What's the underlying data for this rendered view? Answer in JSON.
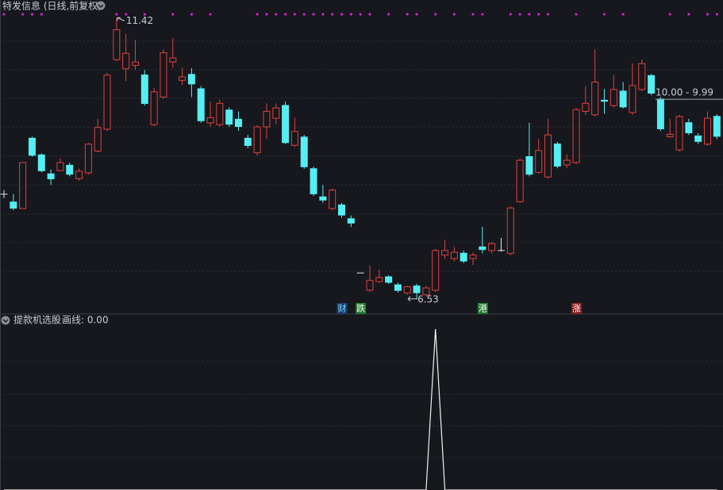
{
  "chart_data": [
    {
      "type": "candlestick",
      "title": "特发信息 (日线,前复权)",
      "open": [
        8.35,
        8.22,
        8.1,
        9.33,
        9.04,
        8.71,
        8.76,
        8.86,
        8.62,
        8.72,
        9.1,
        9.48,
        10.69,
        10.53,
        10.59,
        10.43,
        9.56,
        10.04,
        10.65,
        10.33,
        10.44,
        10.19,
        9.59,
        9.56,
        9.82,
        9.66,
        9.33,
        9.07,
        9.52,
        9.67,
        9.9,
        9.2,
        9.35,
        8.8,
        8.31,
        8.1,
        8.17,
        7.93,
        6.98,
        6.68,
        6.83,
        6.92,
        6.78,
        6.63,
        6.76,
        6.6,
        6.68,
        7.29,
        7.23,
        7.33,
        7.23,
        7.44,
        7.37,
        7.37,
        7.32,
        8.22,
        9.01,
        8.73,
        8.65,
        9.23,
        8.86,
        8.9,
        9.79,
        9.73,
        9.99,
        9.89,
        10.15,
        9.77,
        10.17,
        10.42,
        10.01,
        9.35,
        9.12,
        9.6,
        9.37,
        9.22,
        9.71
      ],
      "high": [
        8.42,
        8.35,
        8.9,
        9.35,
        9.06,
        8.78,
        8.97,
        8.9,
        8.8,
        9.24,
        9.66,
        10.46,
        11.42,
        11.14,
        11.03,
        10.51,
        10.2,
        10.87,
        11.06,
        10.55,
        10.54,
        10.23,
        9.96,
        9.99,
        9.86,
        9.79,
        9.38,
        9.55,
        9.93,
        9.93,
        9.96,
        9.68,
        9.38,
        8.83,
        8.51,
        8.45,
        8.2,
        7.98,
        6.98,
        7.11,
        7.04,
        6.94,
        6.81,
        6.76,
        6.79,
        6.76,
        7.4,
        7.56,
        7.43,
        7.37,
        7.34,
        7.78,
        7.52,
        7.59,
        8.14,
        8.97,
        9.59,
        9.31,
        9.66,
        9.26,
        9.04,
        9.85,
        10.23,
        10.87,
        10.18,
        10.42,
        10.3,
        10.62,
        10.69,
        10.44,
        10.04,
        9.66,
        9.73,
        9.66,
        9.41,
        9.79,
        9.74
      ],
      "low": [
        8.28,
        8.07,
        8.1,
        9.0,
        8.73,
        8.51,
        8.75,
        8.66,
        8.58,
        8.69,
        9.08,
        9.45,
        10.66,
        10.32,
        10.51,
        9.89,
        9.53,
        10.01,
        10.55,
        10.25,
        10.04,
        9.59,
        9.52,
        9.52,
        9.52,
        9.45,
        9.15,
        9.02,
        9.31,
        9.57,
        9.22,
        9.17,
        8.79,
        8.32,
        8.2,
        8.07,
        7.94,
        7.78,
        6.98,
        6.65,
        6.81,
        6.79,
        6.64,
        6.6,
        6.53,
        6.57,
        6.65,
        7.22,
        7.18,
        7.15,
        7.12,
        7.32,
        7.32,
        7.35,
        7.29,
        8.2,
        8.66,
        8.71,
        8.62,
        8.8,
        8.8,
        8.87,
        9.73,
        9.7,
        9.75,
        9.86,
        9.84,
        9.73,
        10.14,
        10.07,
        9.45,
        9.33,
        9.09,
        9.38,
        9.22,
        9.19,
        9.31
      ],
      "close": [
        8.35,
        8.1,
        8.9,
        9.02,
        8.75,
        8.61,
        8.9,
        8.69,
        8.75,
        9.22,
        9.51,
        10.42,
        11.21,
        10.8,
        10.65,
        9.92,
        10.13,
        10.81,
        10.72,
        10.39,
        10.26,
        9.62,
        9.68,
        9.93,
        9.56,
        9.52,
        9.19,
        9.52,
        9.79,
        9.85,
        9.24,
        9.44,
        8.82,
        8.35,
        8.24,
        8.42,
        7.98,
        7.84,
        6.98,
        6.85,
        6.9,
        6.81,
        6.67,
        6.74,
        6.63,
        6.72,
        7.37,
        7.37,
        7.34,
        7.18,
        7.29,
        7.38,
        7.49,
        7.37,
        8.11,
        8.94,
        8.69,
        9.11,
        9.38,
        8.83,
        8.94,
        9.82,
        9.93,
        10.3,
        9.96,
        10.17,
        9.86,
        10.24,
        10.62,
        10.1,
        9.48,
        9.39,
        9.7,
        9.41,
        9.26,
        9.67,
        9.35
      ],
      "ylim": [
        6.28,
        11.52
      ],
      "up_color": "#e2403c",
      "down_color": "#55eef2",
      "flat_color": "#e8e8e8",
      "signals": [
        0,
        2,
        3,
        4,
        12,
        13,
        15,
        18,
        20,
        22,
        27,
        28,
        29,
        30,
        31,
        32,
        33,
        34,
        35,
        36,
        37,
        38,
        39,
        41,
        43,
        44,
        46,
        48,
        50,
        51,
        54,
        55,
        56,
        57,
        58,
        61,
        64,
        66,
        71,
        73,
        75,
        76
      ],
      "signal_color": "#d21ed2",
      "annotations": [
        {
          "text": "11.42",
          "index": 12,
          "value": 11.42
        },
        {
          "text": "6.53",
          "index": 44,
          "value": 6.53
        }
      ],
      "price_line": {
        "label": "10.00 - 9.99",
        "value": 10.0
      },
      "tags": [
        {
          "text": "财",
          "index": 36,
          "color": "#1d3a6e",
          "text_color": "#6fd8f2"
        },
        {
          "text": "跌",
          "index": 38,
          "color": "#1f7a2e",
          "text_color": "#ffffff"
        },
        {
          "text": "港",
          "index": 51,
          "color": "#1f7a2e",
          "text_color": "#ffffff"
        },
        {
          "text": "涨",
          "index": 61,
          "color": "#8a1d1d",
          "text_color": "#ffffff"
        }
      ]
    },
    {
      "type": "line",
      "title": "提款机选股",
      "label": "画线: 0.00",
      "values": [
        0,
        0,
        0,
        0,
        0,
        0,
        0,
        0,
        0,
        0,
        0,
        0,
        0,
        0,
        0,
        0,
        0,
        0,
        0,
        0,
        0,
        0,
        0,
        0,
        0,
        0,
        0,
        0,
        0,
        0,
        0,
        0,
        0,
        0,
        0,
        0,
        0,
        0,
        0,
        0,
        0,
        0,
        0,
        0,
        0,
        0,
        1,
        0,
        0,
        0,
        0,
        0,
        0,
        0,
        0,
        0,
        0,
        0,
        0,
        0,
        0,
        0,
        0,
        0,
        0,
        0,
        0,
        0,
        0,
        0,
        0,
        0,
        0,
        0,
        0,
        0,
        0
      ],
      "color": "#f2f2f2",
      "ylim": [
        0,
        1.015
      ]
    }
  ]
}
